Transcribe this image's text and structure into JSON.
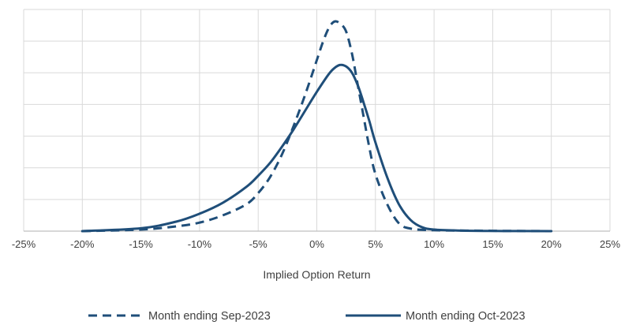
{
  "chart_data": {
    "type": "line",
    "title": "",
    "xlabel": "Implied Option Return",
    "ylabel": "",
    "xlim": [
      -0.25,
      0.25
    ],
    "ylim": [
      0,
      7
    ],
    "x_ticks": [
      -0.25,
      -0.2,
      -0.15,
      -0.1,
      -0.05,
      0,
      0.05,
      0.1,
      0.15,
      0.2,
      0.25
    ],
    "x_tick_labels": [
      "-25%",
      "-20%",
      "-15%",
      "-10%",
      "-5%",
      "0%",
      "5%",
      "10%",
      "15%",
      "20%",
      "25%"
    ],
    "grid": true,
    "y_tick_labels_visible": false,
    "legend_position": "bottom",
    "series": [
      {
        "name": "Month ending Sep-2023",
        "style": "dashed",
        "color": "#1f4e79",
        "x": [
          -0.2,
          -0.15,
          -0.12,
          -0.1,
          -0.08,
          -0.06,
          -0.05,
          -0.04,
          -0.03,
          -0.02,
          -0.01,
          0.0,
          0.005,
          0.01,
          0.015,
          0.02,
          0.025,
          0.03,
          0.035,
          0.04,
          0.045,
          0.05,
          0.06,
          0.07,
          0.08,
          0.1,
          0.15,
          0.2
        ],
        "y": [
          0.0,
          0.05,
          0.15,
          0.27,
          0.5,
          0.85,
          1.2,
          1.7,
          2.4,
          3.3,
          4.3,
          5.4,
          5.95,
          6.4,
          6.62,
          6.55,
          6.3,
          5.6,
          4.6,
          3.6,
          2.6,
          1.8,
          0.85,
          0.25,
          0.08,
          0.03,
          0.01,
          0.0
        ]
      },
      {
        "name": "Month ending Oct-2023",
        "style": "solid",
        "color": "#1f4e79",
        "x": [
          -0.2,
          -0.15,
          -0.12,
          -0.1,
          -0.08,
          -0.06,
          -0.05,
          -0.04,
          -0.03,
          -0.02,
          -0.01,
          0.0,
          0.01,
          0.015,
          0.02,
          0.025,
          0.03,
          0.035,
          0.04,
          0.045,
          0.05,
          0.06,
          0.07,
          0.08,
          0.09,
          0.1,
          0.12,
          0.15,
          0.2
        ],
        "y": [
          0.0,
          0.09,
          0.3,
          0.55,
          0.9,
          1.4,
          1.75,
          2.15,
          2.65,
          3.2,
          3.8,
          4.4,
          4.95,
          5.15,
          5.25,
          5.2,
          5.0,
          4.6,
          4.05,
          3.45,
          2.8,
          1.7,
          0.85,
          0.35,
          0.12,
          0.05,
          0.02,
          0.005,
          0.0
        ]
      }
    ]
  }
}
